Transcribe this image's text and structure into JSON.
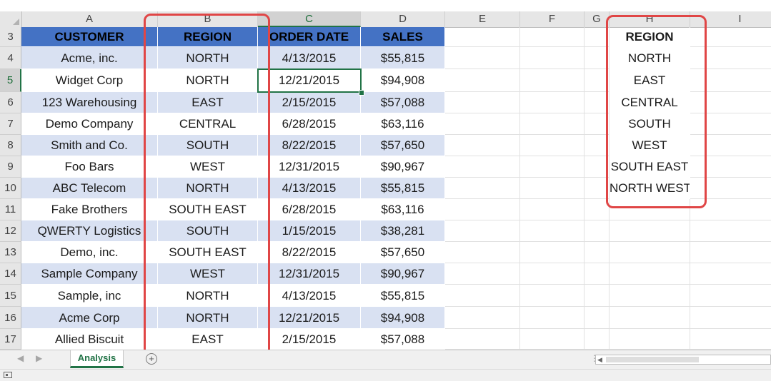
{
  "columns": [
    "A",
    "B",
    "C",
    "D",
    "E",
    "F",
    "G",
    "H",
    "I"
  ],
  "selected_column": "C",
  "rows": [
    3,
    4,
    5,
    6,
    7,
    8,
    9,
    10,
    11,
    12,
    13,
    14,
    15,
    16,
    17
  ],
  "selected_row": 5,
  "table": {
    "headers": [
      "CUSTOMER",
      "REGION",
      "ORDER DATE",
      "SALES"
    ],
    "data": [
      [
        "Acme, inc.",
        "NORTH",
        "4/13/2015",
        "$55,815"
      ],
      [
        "Widget Corp",
        "NORTH",
        "12/21/2015",
        "$94,908"
      ],
      [
        "123 Warehousing",
        "EAST",
        "2/15/2015",
        "$57,088"
      ],
      [
        "Demo Company",
        "CENTRAL",
        "6/28/2015",
        "$63,116"
      ],
      [
        "Smith and Co.",
        "SOUTH",
        "8/22/2015",
        "$57,650"
      ],
      [
        "Foo Bars",
        "WEST",
        "12/31/2015",
        "$90,967"
      ],
      [
        "ABC Telecom",
        "NORTH",
        "4/13/2015",
        "$55,815"
      ],
      [
        "Fake Brothers",
        "SOUTH EAST",
        "6/28/2015",
        "$63,116"
      ],
      [
        "QWERTY Logistics",
        "SOUTH",
        "1/15/2015",
        "$38,281"
      ],
      [
        "Demo, inc.",
        "SOUTH EAST",
        "8/22/2015",
        "$57,650"
      ],
      [
        "Sample Company",
        "WEST",
        "12/31/2015",
        "$90,967"
      ],
      [
        "Sample, inc",
        "NORTH",
        "4/13/2015",
        "$55,815"
      ],
      [
        "Acme Corp",
        "NORTH",
        "12/21/2015",
        "$94,908"
      ],
      [
        "Allied Biscuit",
        "EAST",
        "2/15/2015",
        "$57,088"
      ]
    ]
  },
  "region_list": {
    "header": "REGION",
    "items": [
      "NORTH",
      "EAST",
      "CENTRAL",
      "SOUTH",
      "WEST",
      "SOUTH EAST",
      "NORTH WEST"
    ]
  },
  "sheet_tabs": [
    "Analysis"
  ],
  "add_sheet_label": "+",
  "colors": {
    "header_fill": "#4472c4",
    "band_fill": "#d9e1f2",
    "highlight_box": "#e04646",
    "active_cell": "#217346"
  }
}
